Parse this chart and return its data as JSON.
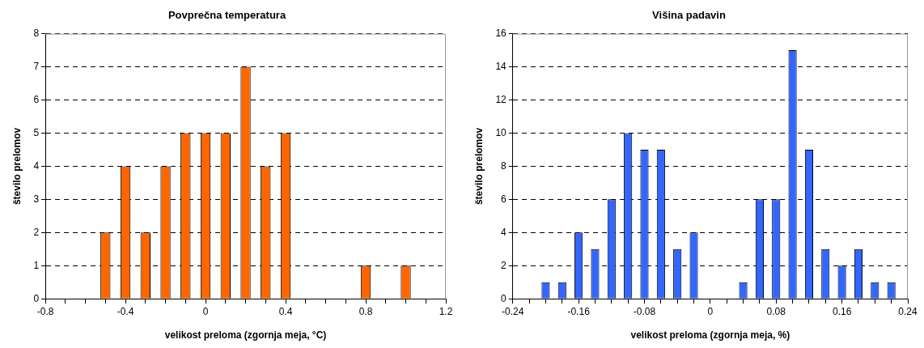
{
  "chart_data": [
    {
      "type": "bar",
      "title": "Povprečna temperatura",
      "xlabel": "velikost preloma (zgornja meja, °C)",
      "ylabel": "število prelomov",
      "x": [
        -0.5,
        -0.4,
        -0.3,
        -0.2,
        -0.1,
        0,
        0.1,
        0.2,
        0.3,
        0.4,
        0.8,
        1.0
      ],
      "series": [
        {
          "color": "#ff6600",
          "values": [
            2,
            4,
            2,
            4,
            5,
            5,
            5,
            7,
            4,
            5,
            1,
            1
          ]
        }
      ],
      "xlim": [
        -0.8,
        1.2
      ],
      "xticks": [
        -0.8,
        {
          "value": -0.7,
          "label": null
        },
        {
          "value": -0.6,
          "label": null
        },
        {
          "value": -0.5,
          "label": null
        },
        -0.4,
        {
          "value": -0.3,
          "label": null
        },
        {
          "value": -0.2,
          "label": null
        },
        {
          "value": -0.1,
          "label": null
        },
        0,
        {
          "value": 0.1,
          "label": null
        },
        {
          "value": 0.2,
          "label": null
        },
        {
          "value": 0.3,
          "label": null
        },
        0.4,
        {
          "value": 0.5,
          "label": null
        },
        {
          "value": 0.6,
          "label": null
        },
        {
          "value": 0.7,
          "label": null
        },
        0.8,
        {
          "value": 0.9,
          "label": null
        },
        {
          "value": 1.0,
          "label": null
        },
        {
          "value": 1.1,
          "label": null
        },
        1.2
      ],
      "ylim": [
        0,
        8
      ],
      "yticks": [
        0,
        1,
        2,
        3,
        4,
        5,
        6,
        7,
        8
      ],
      "grid": "y",
      "legend": false
    },
    {
      "type": "bar",
      "title": "Višina padavin",
      "xlabel": "velikost preloma (zgornja meja, %)",
      "ylabel": "število prelomov",
      "x": [
        -0.2,
        -0.18,
        -0.16,
        -0.14,
        -0.12,
        -0.1,
        -0.08,
        -0.06,
        -0.04,
        -0.02,
        0.04,
        0.06,
        0.08,
        0.1,
        0.12,
        0.14,
        0.16,
        0.18,
        0.2,
        0.22
      ],
      "series": [
        {
          "color": "#3366ff",
          "values": [
            1,
            1,
            4,
            3,
            6,
            10,
            9,
            9,
            3,
            4,
            1,
            6,
            6,
            15,
            9,
            3,
            2,
            3,
            1,
            1
          ]
        }
      ],
      "xlim": [
        -0.24,
        0.24
      ],
      "xticks": [
        -0.24,
        {
          "value": -0.22,
          "label": null
        },
        {
          "value": -0.2,
          "label": null
        },
        {
          "value": -0.18,
          "label": null
        },
        -0.16,
        {
          "value": -0.14,
          "label": null
        },
        {
          "value": -0.12,
          "label": null
        },
        {
          "value": -0.1,
          "label": null
        },
        -0.08,
        {
          "value": -0.06,
          "label": null
        },
        {
          "value": -0.04,
          "label": null
        },
        {
          "value": -0.02,
          "label": null
        },
        0,
        {
          "value": 0.02,
          "label": null
        },
        {
          "value": 0.04,
          "label": null
        },
        {
          "value": 0.06,
          "label": null
        },
        0.08,
        {
          "value": 0.1,
          "label": null
        },
        {
          "value": 0.12,
          "label": null
        },
        {
          "value": 0.14,
          "label": null
        },
        0.16,
        {
          "value": 0.18,
          "label": null
        },
        {
          "value": 0.2,
          "label": null
        },
        {
          "value": 0.22,
          "label": null
        },
        0.24
      ],
      "ylim": [
        0,
        16
      ],
      "yticks": [
        0,
        2,
        4,
        6,
        8,
        10,
        12,
        14,
        16
      ],
      "grid": "y",
      "legend": false
    }
  ]
}
